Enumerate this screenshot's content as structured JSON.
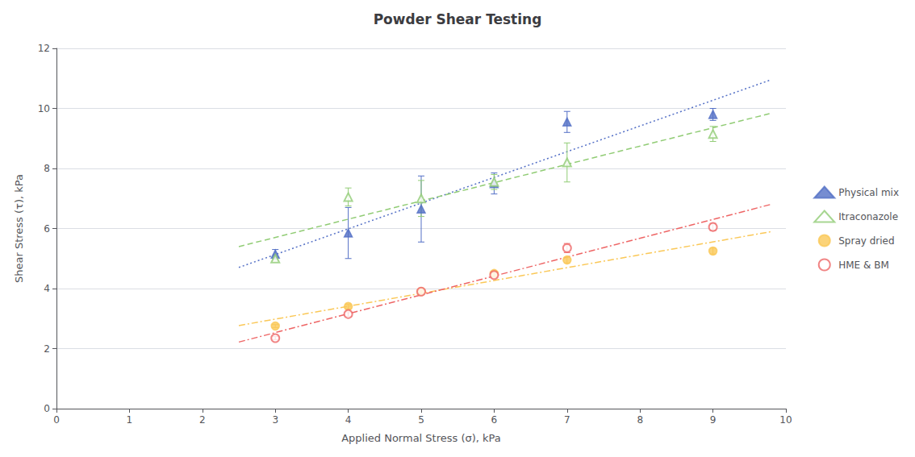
{
  "chart_data": {
    "type": "scatter",
    "title": "Powder Shear Testing",
    "xlabel": "Applied Normal Stress (σ), kPa",
    "ylabel": "Shear Stress (τ), kPa",
    "xlim": [
      0,
      10
    ],
    "ylim": [
      0,
      12
    ],
    "xticks": [
      0,
      1,
      2,
      3,
      4,
      5,
      6,
      7,
      8,
      9,
      10
    ],
    "yticks": [
      0,
      2,
      4,
      6,
      8,
      10,
      12
    ],
    "grid": "y",
    "legend": "right",
    "series": [
      {
        "name": "Physical mix",
        "marker": "triangle",
        "line_style": "dotted",
        "x": [
          3,
          4,
          5,
          6,
          7,
          9
        ],
        "values": [
          5.15,
          5.85,
          6.65,
          7.5,
          9.55,
          9.8
        ],
        "yerr": [
          0.15,
          0.85,
          1.1,
          0.35,
          0.35,
          0.2
        ],
        "fit": {
          "x": [
            2.5,
            9.8
          ],
          "y": [
            4.704643,
            10.956571
          ]
        }
      },
      {
        "name": "Itraconazole",
        "marker": "triangle-open",
        "line_style": "dashed",
        "x": [
          3,
          4,
          5,
          6,
          7,
          9
        ],
        "values": [
          5.0,
          7.05,
          7.0,
          7.55,
          8.2,
          9.15
        ],
        "yerr": [
          0.05,
          0.3,
          0.6,
          0.25,
          0.65,
          0.25
        ],
        "fit": {
          "x": [
            2.5,
            9.8
          ],
          "y": [
            5.397857,
            9.840429
          ]
        }
      },
      {
        "name": "Spray dried",
        "marker": "circle",
        "line_style": "dashdot",
        "x": [
          3,
          4,
          5,
          6,
          7,
          9
        ],
        "values": [
          2.75,
          3.4,
          3.9,
          4.5,
          4.95,
          5.25
        ],
        "yerr": [
          0.05,
          0.08,
          0.08,
          0.08,
          0.1,
          0.1
        ],
        "fit": {
          "x": [
            2.5,
            9.8
          ],
          "y": [
            2.767857,
            5.896429
          ]
        }
      },
      {
        "name": "HME & BM",
        "marker": "circle-open",
        "line_style": "dashdot",
        "x": [
          3,
          4,
          5,
          6,
          7,
          9
        ],
        "values": [
          2.35,
          3.15,
          3.9,
          4.45,
          5.35,
          6.05
        ],
        "yerr": [
          0.05,
          0.07,
          0.07,
          0.07,
          0.15,
          0.12
        ],
        "fit": {
          "x": [
            2.5,
            9.8
          ],
          "y": [
            2.217857,
            6.806429
          ]
        }
      }
    ]
  }
}
